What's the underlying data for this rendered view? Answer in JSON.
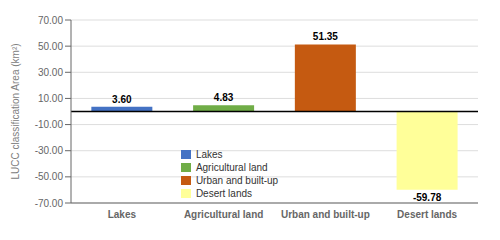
{
  "chart_data": {
    "type": "bar",
    "categories": [
      "Lakes",
      "Agricultural land",
      "Urban and built-up",
      "Desert lands"
    ],
    "values": [
      3.6,
      4.83,
      51.35,
      -59.78
    ],
    "value_labels": [
      "3.60",
      "4.83",
      "51.35",
      "-59.78"
    ],
    "data_labels": true,
    "colors": [
      "#4472c4",
      "#70ad47",
      "#c55a11",
      "#ffff99"
    ],
    "ylabel": "LUCC classification Area (km²)",
    "ylim": [
      -70,
      70
    ],
    "yticks": [
      {
        "value": -70,
        "label": "-70.00"
      },
      {
        "value": -50,
        "label": "-50.00"
      },
      {
        "value": -30,
        "label": "-30.00"
      },
      {
        "value": -10,
        "label": "-10.00"
      },
      {
        "value": 10,
        "label": "10.00"
      },
      {
        "value": 30,
        "label": "30.00"
      },
      {
        "value": 50,
        "label": "50.00"
      },
      {
        "value": 70,
        "label": "70.00"
      }
    ],
    "grid": true,
    "legend": "lower left"
  }
}
